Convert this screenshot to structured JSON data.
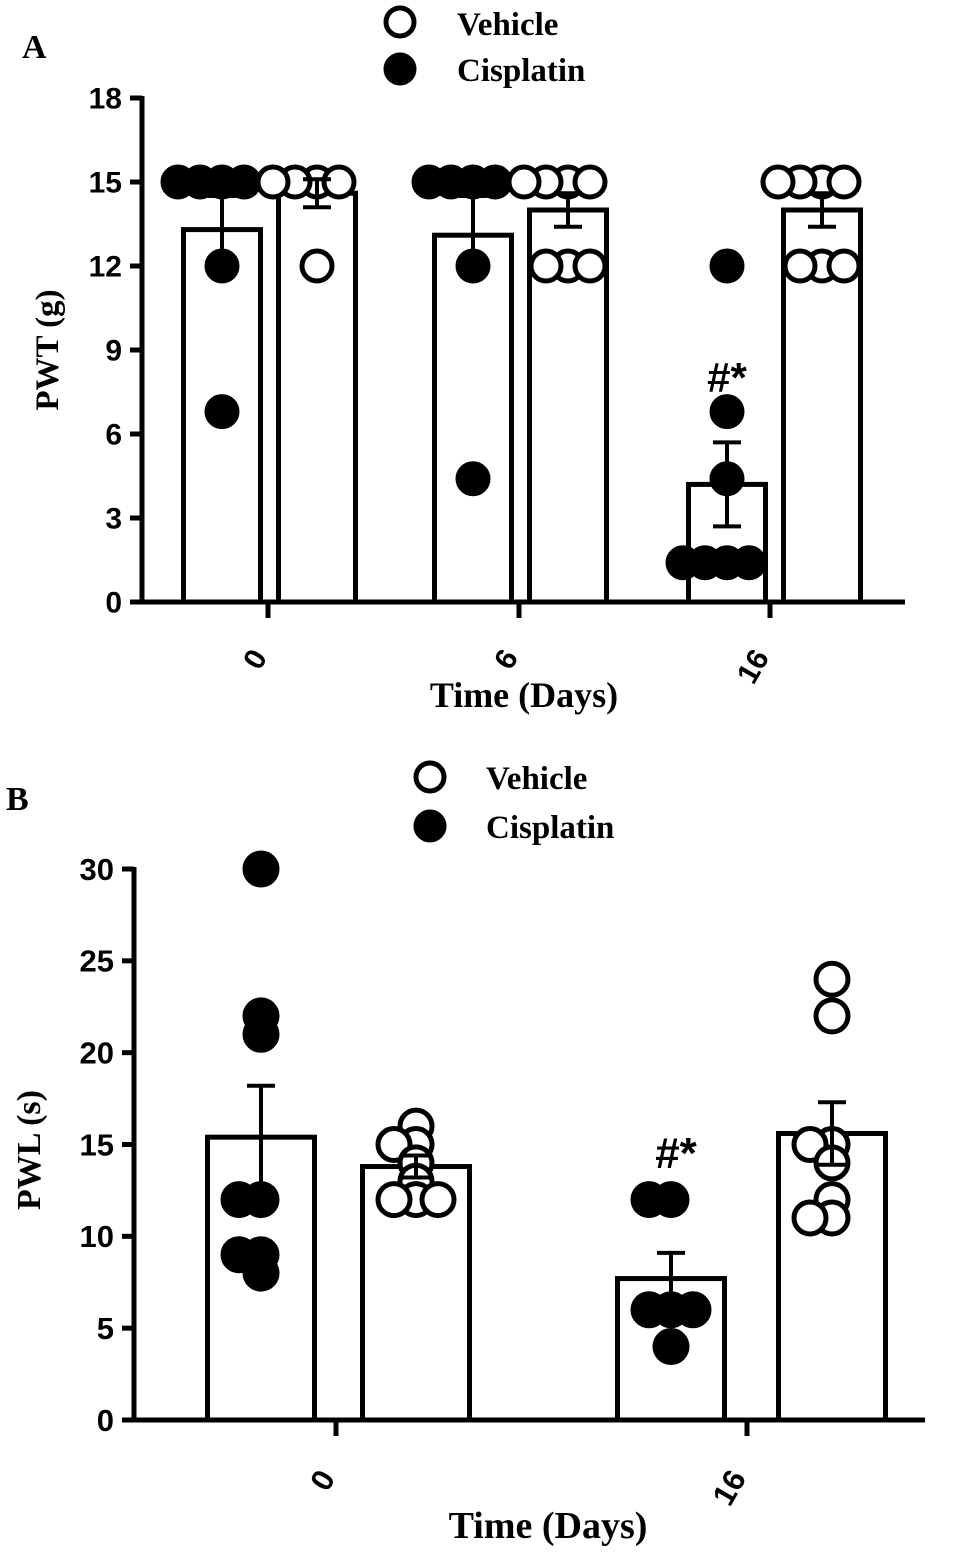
{
  "chart_data": [
    {
      "panel": "A",
      "type": "bar",
      "legend": [
        "Vehicle",
        "Cisplatin"
      ],
      "ylabel": "PWT (g)",
      "xlabel": "Time (Days)",
      "ylim": [
        0,
        18
      ],
      "yticks": [
        "0",
        "3",
        "6",
        "9",
        "12",
        "15",
        "18"
      ],
      "categories": [
        "0",
        "6",
        "16"
      ],
      "annotation": "#*",
      "series": [
        {
          "name": "Cisplatin",
          "fill": "filled",
          "means": [
            13.3,
            13.1,
            4.2
          ],
          "sem": [
            1.2,
            1.4,
            1.5
          ],
          "points": [
            [
              15,
              15,
              15,
              15,
              12,
              6.8
            ],
            [
              15,
              15,
              15,
              15,
              12,
              4.4
            ],
            [
              12,
              6.8,
              4.4,
              1.4,
              1.4,
              1.4,
              1.4
            ]
          ]
        },
        {
          "name": "Vehicle",
          "fill": "open",
          "means": [
            14.6,
            14.0,
            14.0
          ],
          "sem": [
            0.5,
            0.6,
            0.6
          ],
          "points": [
            [
              15,
              15,
              15,
              15,
              12
            ],
            [
              15,
              15,
              15,
              15,
              12,
              12,
              12
            ],
            [
              15,
              15,
              15,
              15,
              12,
              12,
              12
            ]
          ]
        }
      ]
    },
    {
      "panel": "B",
      "type": "bar",
      "legend": [
        "Vehicle",
        "Cisplatin"
      ],
      "ylabel": "PWL (s)",
      "xlabel": "Time (Days)",
      "ylim": [
        0,
        30
      ],
      "yticks": [
        "0",
        "5",
        "10",
        "15",
        "20",
        "25",
        "30"
      ],
      "categories": [
        "0",
        "16"
      ],
      "annotation": "#*",
      "series": [
        {
          "name": "Cisplatin",
          "fill": "filled",
          "means": [
            15.4,
            7.7
          ],
          "sem": [
            2.8,
            1.4
          ],
          "points": [
            [
              30,
              22,
              21,
              12,
              12,
              9,
              9,
              8
            ],
            [
              12,
              12,
              6,
              6,
              6,
              4
            ]
          ]
        },
        {
          "name": "Vehicle",
          "fill": "open",
          "means": [
            13.8,
            15.6
          ],
          "sem": [
            0.6,
            1.7
          ],
          "points": [
            [
              16,
              15,
              15,
              14,
              13,
              12,
              12,
              12
            ],
            [
              24,
              22,
              15,
              15,
              14,
              12,
              11,
              11
            ]
          ]
        }
      ]
    }
  ]
}
